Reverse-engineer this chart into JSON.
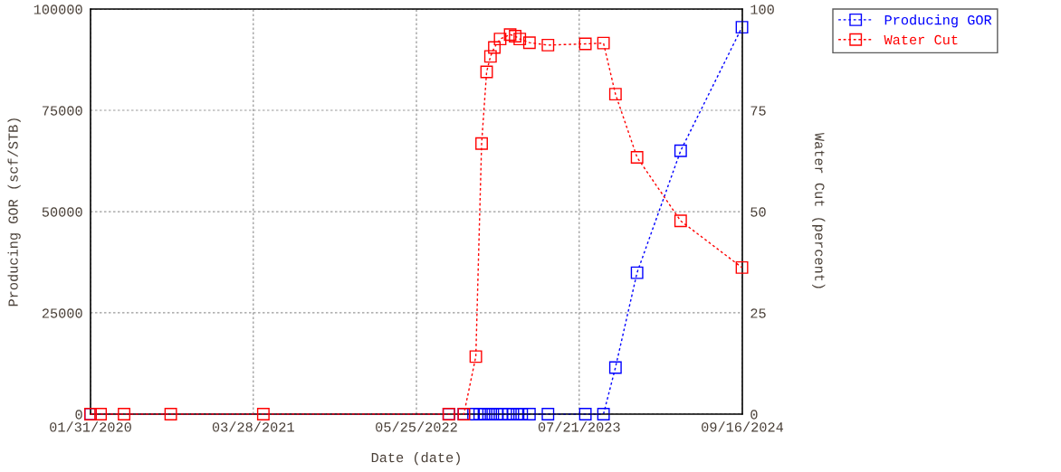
{
  "chart_data": {
    "type": "line",
    "xlabel": "Date (date)",
    "ylabel": "Producing GOR (scf/STB)",
    "y2label": "Water Cut (percent)",
    "xlim": [
      "2020-01-31",
      "2024-09-16"
    ],
    "xticks": [
      {
        "value": "2020-01-31",
        "label": "01/31/2020"
      },
      {
        "value": "2021-03-28",
        "label": "03/28/2021"
      },
      {
        "value": "2022-05-25",
        "label": "05/25/2022"
      },
      {
        "value": "2023-07-21",
        "label": "07/21/2023"
      },
      {
        "value": "2024-09-16",
        "label": "09/16/2024"
      }
    ],
    "ylim": [
      0,
      100000
    ],
    "yticks": [
      0,
      25000,
      50000,
      75000,
      100000
    ],
    "y2lim": [
      0,
      100
    ],
    "y2ticks": [
      0,
      25,
      50,
      75,
      100
    ],
    "grid": true,
    "legend": "right",
    "marker": "square",
    "line_style": "dotted",
    "series": [
      {
        "name": "Producing GOR",
        "color": "#0000ff",
        "axis": "y",
        "x": [
          "2020-01-31",
          "2022-08-17",
          "2022-09-25",
          "2022-10-20",
          "2022-11-05",
          "2022-11-16",
          "2022-11-28",
          "2022-12-09",
          "2022-12-21",
          "2023-01-02",
          "2023-01-18",
          "2023-01-30",
          "2023-02-10",
          "2023-02-22",
          "2023-03-14",
          "2023-05-01",
          "2023-08-06",
          "2023-09-22",
          "2023-10-23",
          "2023-12-18",
          "2024-04-09",
          "2024-09-15"
        ],
        "values": [
          0,
          0,
          0,
          0,
          0,
          0,
          0,
          0,
          0,
          0,
          0,
          0,
          0,
          0,
          0,
          0,
          0,
          0,
          11500,
          34900,
          65000,
          95500
        ]
      },
      {
        "name": "Water Cut",
        "color": "#ff0000",
        "axis": "y2",
        "x": [
          "2020-01-31",
          "2020-02-26",
          "2020-04-27",
          "2020-08-26",
          "2021-04-23",
          "2022-08-17",
          "2022-09-25",
          "2022-10-26",
          "2022-11-10",
          "2022-11-23",
          "2022-12-03",
          "2022-12-13",
          "2022-12-28",
          "2023-01-23",
          "2023-02-05",
          "2023-02-17",
          "2023-03-14",
          "2023-05-01",
          "2023-08-06",
          "2023-09-22",
          "2023-10-23",
          "2023-12-18",
          "2024-04-09",
          "2024-09-15"
        ],
        "values": [
          0,
          0,
          0,
          0,
          0,
          0,
          0,
          14.2,
          66.8,
          84.5,
          88.3,
          90.5,
          92.6,
          93.7,
          93.3,
          92.6,
          91.7,
          91.1,
          91.4,
          91.6,
          79.0,
          63.4,
          47.7,
          36.2
        ]
      }
    ]
  }
}
